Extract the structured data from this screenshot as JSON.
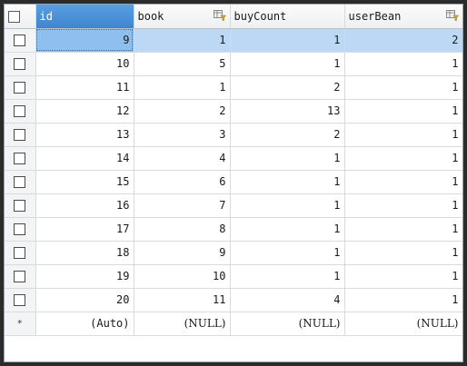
{
  "columns": {
    "id": "id",
    "book": "book",
    "buyCount": "buyCount",
    "userBean": "userBean"
  },
  "rows": [
    {
      "id": "9",
      "book": "1",
      "buyCount": "1",
      "userBean": "2"
    },
    {
      "id": "10",
      "book": "5",
      "buyCount": "1",
      "userBean": "1"
    },
    {
      "id": "11",
      "book": "1",
      "buyCount": "2",
      "userBean": "1"
    },
    {
      "id": "12",
      "book": "2",
      "buyCount": "13",
      "userBean": "1"
    },
    {
      "id": "13",
      "book": "3",
      "buyCount": "2",
      "userBean": "1"
    },
    {
      "id": "14",
      "book": "4",
      "buyCount": "1",
      "userBean": "1"
    },
    {
      "id": "15",
      "book": "6",
      "buyCount": "1",
      "userBean": "1"
    },
    {
      "id": "16",
      "book": "7",
      "buyCount": "1",
      "userBean": "1"
    },
    {
      "id": "17",
      "book": "8",
      "buyCount": "1",
      "userBean": "1"
    },
    {
      "id": "18",
      "book": "9",
      "buyCount": "1",
      "userBean": "1"
    },
    {
      "id": "19",
      "book": "10",
      "buyCount": "1",
      "userBean": "1"
    },
    {
      "id": "20",
      "book": "11",
      "buyCount": "4",
      "userBean": "1"
    }
  ],
  "new_row": {
    "marker": "*",
    "id": "(Auto)",
    "book": "(NULL)",
    "buyCount": "(NULL)",
    "userBean": "(NULL)"
  },
  "icons": {
    "header_checkbox": "checkbox-icon",
    "foreign_key": "foreign-key-filter-icon"
  },
  "colors": {
    "active_header": "#3d86d1",
    "selected_row": "#bcd8f5",
    "current_cell": "#8fbfee",
    "foreign_key_icon": "#d9a441"
  }
}
